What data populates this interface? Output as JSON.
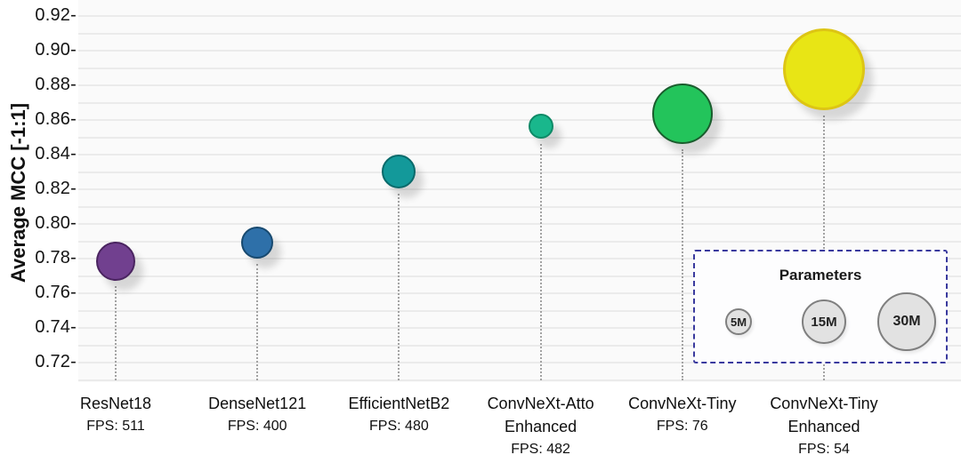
{
  "chart_data": {
    "type": "scatter",
    "subtype": "bubble",
    "title": "",
    "xlabel": "",
    "ylabel": "Average MCC [-1:1]",
    "ylim": [
      0.71,
      0.93
    ],
    "grid": "horizontal, every 0.01",
    "size_encoding": "bubble size = model parameter count (see legend)",
    "yticks": [
      {
        "value": 0.92,
        "label": "0.92-"
      },
      {
        "value": 0.9,
        "label": "0.90-"
      },
      {
        "value": 0.88,
        "label": "0.88-"
      },
      {
        "value": 0.86,
        "label": "0.86-"
      },
      {
        "value": 0.84,
        "label": "0.84-"
      },
      {
        "value": 0.82,
        "label": "0.82-"
      },
      {
        "value": 0.8,
        "label": "0.80-"
      },
      {
        "value": 0.78,
        "label": "0.78-"
      },
      {
        "value": 0.76,
        "label": "0.76-"
      },
      {
        "value": 0.74,
        "label": "0.74-"
      },
      {
        "value": 0.72,
        "label": "0.72-"
      }
    ],
    "models": [
      {
        "name": "ResNet18",
        "name_lines": [
          "ResNet18"
        ],
        "fps": 511,
        "fps_label": "FPS: 511",
        "mcc": 0.778,
        "radius_px": 22,
        "fill": "#71408f",
        "stroke": "#4a2460",
        "stroke_width": 2
      },
      {
        "name": "DenseNet121",
        "name_lines": [
          "DenseNet121"
        ],
        "fps": 400,
        "fps_label": "FPS: 400",
        "mcc": 0.789,
        "radius_px": 18,
        "fill": "#2e70a9",
        "stroke": "#17496f",
        "stroke_width": 2
      },
      {
        "name": "EfficientNetB2",
        "name_lines": [
          "EfficientNetB2"
        ],
        "fps": 480,
        "fps_label": "FPS: 480",
        "mcc": 0.83,
        "radius_px": 19,
        "fill": "#13999a",
        "stroke": "#0a6a6b",
        "stroke_width": 2
      },
      {
        "name": "ConvNeXt-Atto Enhanced",
        "name_lines": [
          "ConvNeXt-Atto",
          "Enhanced"
        ],
        "fps": 482,
        "fps_label": "FPS: 482",
        "mcc": 0.856,
        "radius_px": 14,
        "fill": "#19b78c",
        "stroke": "#0e8a67",
        "stroke_width": 2
      },
      {
        "name": "ConvNeXt-Tiny",
        "name_lines": [
          "ConvNeXt-Tiny"
        ],
        "fps": 76,
        "fps_label": "FPS: 76",
        "mcc": 0.863,
        "radius_px": 34,
        "fill": "#23c45b",
        "stroke": "#1a5c2d",
        "stroke_width": 2
      },
      {
        "name": "ConvNeXt-Tiny Enhanced",
        "name_lines": [
          "ConvNeXt-Tiny",
          "Enhanced"
        ],
        "fps": 54,
        "fps_label": "FPS: 54",
        "mcc": 0.889,
        "radius_px": 46,
        "fill": "#e8e515",
        "stroke": "#ddc514",
        "stroke_width": 3
      }
    ],
    "legend": {
      "title": "Parameters",
      "items": [
        {
          "label": "5M",
          "radius_px": 15
        },
        {
          "label": "15M",
          "radius_px": 25
        },
        {
          "label": "30M",
          "radius_px": 33
        }
      ]
    },
    "colors": {
      "legend_border": "#3a3a9e",
      "legend_circle_fill": "#e2e2e2",
      "legend_circle_stroke": "#7f7f7f",
      "gridline": "#ebebeb",
      "dotted_guide": "#a3a3a3",
      "plot_background": "#fafafa"
    }
  }
}
